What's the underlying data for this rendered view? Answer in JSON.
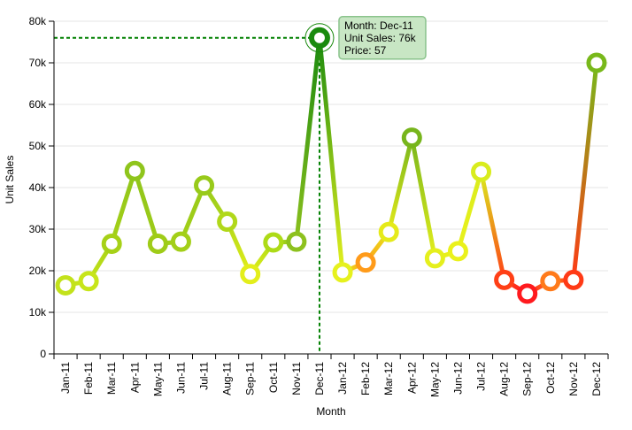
{
  "chart_data": {
    "type": "line",
    "xlabel": "Month",
    "ylabel": "Unit Sales",
    "ylim": [
      0,
      80000
    ],
    "yticks": [
      "0",
      "10k",
      "20k",
      "30k",
      "40k",
      "50k",
      "60k",
      "70k",
      "80k"
    ],
    "categories": [
      "Jan-11",
      "Feb-11",
      "Mar-11",
      "Apr-11",
      "May-11",
      "Jun-11",
      "Jul-11",
      "Aug-11",
      "Sep-11",
      "Oct-11",
      "Nov-11",
      "Dec-11",
      "Jan-12",
      "Feb-12",
      "Mar-12",
      "Apr-12",
      "May-12",
      "Jun-12",
      "Jul-12",
      "Aug-12",
      "Sep-12",
      "Oct-12",
      "Nov-12",
      "Dec-12"
    ],
    "series": [
      {
        "values": [
          16500,
          17500,
          26500,
          44000,
          26500,
          27000,
          40500,
          31800,
          19200,
          26800,
          27000,
          76000,
          19600,
          22000,
          29300,
          52000,
          23000,
          24700,
          43800,
          17800,
          14500,
          17500,
          17800,
          70000
        ],
        "colors": [
          "#c3e21b",
          "#c7e51a",
          "#a6d117",
          "#8fc51c",
          "#9fcc18",
          "#a3cf18",
          "#98ca1a",
          "#b1d81a",
          "#e3ee1b",
          "#addb17",
          "#8dc11e",
          "#1a8a0e",
          "#e6f11e",
          "#ff9b1a",
          "#e5ea1a",
          "#77b51c",
          "#e5ef1d",
          "#eaf11b",
          "#d9ec1e",
          "#ff3f16",
          "#ff1a1e",
          "#ff7a1a",
          "#ff3a16",
          "#78b81a"
        ]
      }
    ],
    "grid": true,
    "highlight": {
      "index": 11,
      "tooltip": [
        "Month: Dec-11",
        "Unit Sales: 76k",
        "Price: 57"
      ],
      "line_color": "#008000",
      "tooltip_fill": "#c8e6c4",
      "tooltip_stroke": "#8ac38c"
    }
  }
}
